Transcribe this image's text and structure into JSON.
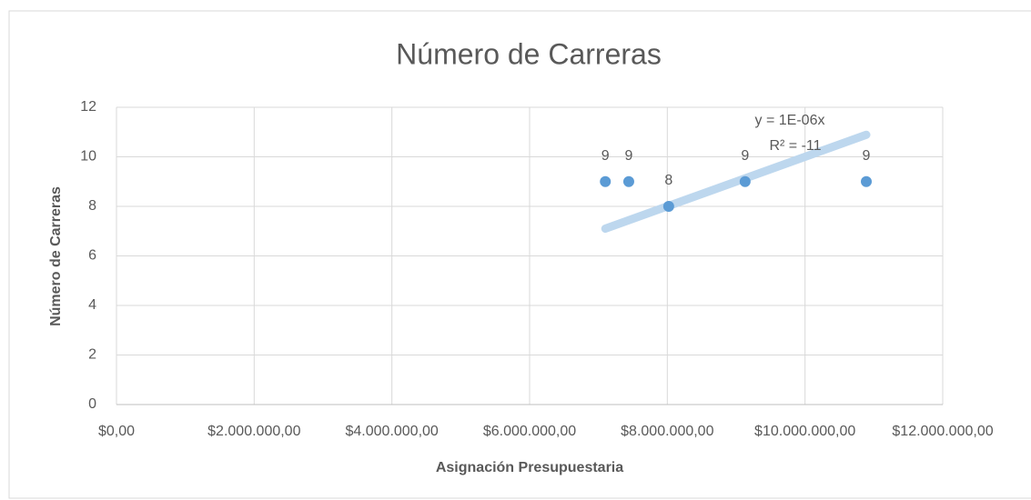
{
  "chart_data": {
    "type": "scatter",
    "title": "Número de Carreras",
    "x_label": "Asignación Presupuestaria",
    "y_label": "Número de Carreras",
    "x": [
      7100000,
      7440000,
      8020000,
      9130000,
      10890000
    ],
    "values": [
      9,
      9,
      8,
      9,
      9
    ],
    "color": "#5b9bd5",
    "trendline": {
      "slope": 1e-06,
      "equation": "y = 1E-06x",
      "r2": "R² = -11",
      "color": "#bdd7ee"
    },
    "xlim": [
      0,
      12000000
    ],
    "xticks": [
      {
        "value": 0,
        "label": "$0,00"
      },
      {
        "value": 2000000,
        "label": "$2.000.000,00"
      },
      {
        "value": 4000000,
        "label": "$4.000.000,00"
      },
      {
        "value": 6000000,
        "label": "$6.000.000,00"
      },
      {
        "value": 8000000,
        "label": "$8.000.000,00"
      },
      {
        "value": 10000000,
        "label": "$10.000.000,00"
      },
      {
        "value": 12000000,
        "label": "$12.000.000,00"
      }
    ],
    "ylim": [
      0,
      12
    ],
    "yticks": [
      0,
      2,
      4,
      6,
      8,
      10,
      12
    ],
    "grid": true
  }
}
